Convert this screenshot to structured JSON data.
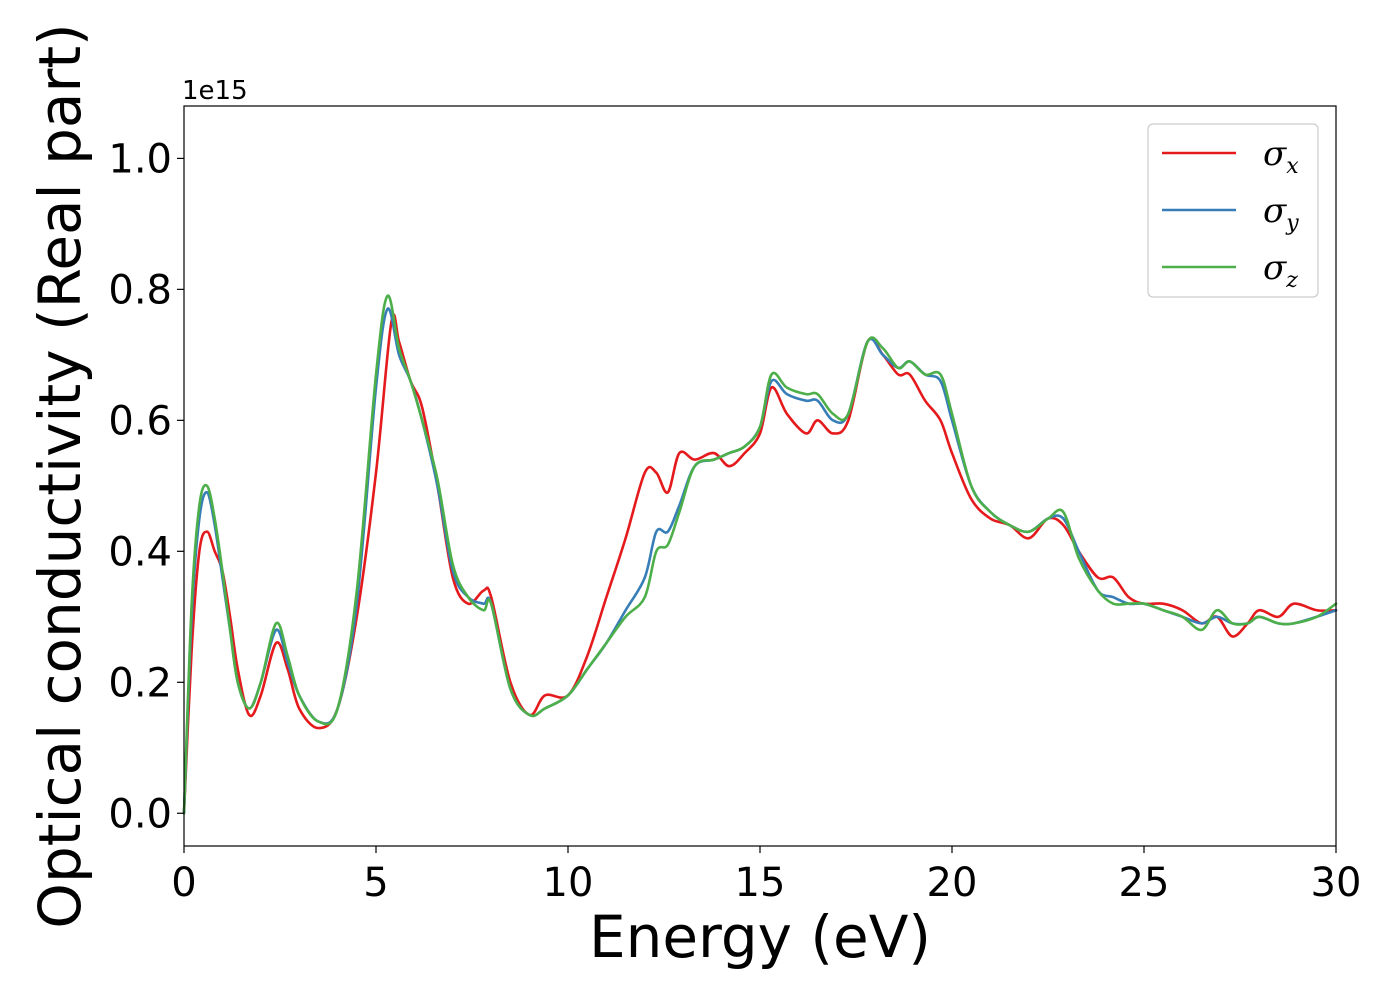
{
  "chart_data": {
    "type": "line",
    "xlabel": "Energy (eV)",
    "ylabel": "Optical conductivity (Real part)",
    "y_offset_label": "1e15",
    "xlim": [
      0,
      30
    ],
    "ylim": [
      -0.05,
      1.08
    ],
    "xticks": [
      0,
      5,
      10,
      15,
      20,
      25,
      30
    ],
    "xtick_labels": [
      "0",
      "5",
      "10",
      "15",
      "20",
      "25",
      "30"
    ],
    "yticks": [
      0.0,
      0.2,
      0.4,
      0.6,
      0.8,
      1.0
    ],
    "ytick_labels": [
      "0.0",
      "0.2",
      "0.4",
      "0.6",
      "0.8",
      "1.0"
    ],
    "grid": false,
    "legend_position": "top-right",
    "series": [
      {
        "name": "σx",
        "symbol": "σ",
        "subscript": "x",
        "color": "#e41a1c",
        "x": [
          0,
          0.2,
          0.4,
          0.6,
          0.8,
          1.0,
          1.2,
          1.4,
          1.7,
          2.0,
          2.4,
          2.7,
          3.0,
          3.5,
          4.0,
          4.5,
          5.0,
          5.4,
          5.6,
          5.9,
          6.2,
          6.6,
          7.0,
          7.4,
          7.8,
          8.0,
          8.5,
          9.0,
          9.4,
          10.0,
          10.5,
          11.0,
          11.5,
          12.0,
          12.3,
          12.6,
          12.9,
          13.3,
          13.8,
          14.2,
          14.6,
          15.0,
          15.3,
          15.7,
          16.2,
          16.5,
          16.9,
          17.3,
          17.8,
          18.2,
          18.6,
          18.9,
          19.3,
          19.7,
          20.0,
          20.5,
          21.0,
          21.5,
          22.0,
          22.5,
          22.9,
          23.3,
          23.8,
          24.2,
          24.6,
          25.0,
          25.5,
          26.0,
          26.5,
          26.9,
          27.3,
          27.7,
          28.0,
          28.5,
          28.9,
          29.5,
          30.0
        ],
        "y": [
          0.0,
          0.25,
          0.4,
          0.43,
          0.4,
          0.37,
          0.3,
          0.22,
          0.15,
          0.18,
          0.26,
          0.22,
          0.16,
          0.13,
          0.16,
          0.3,
          0.52,
          0.75,
          0.72,
          0.66,
          0.62,
          0.5,
          0.36,
          0.32,
          0.34,
          0.33,
          0.2,
          0.15,
          0.18,
          0.18,
          0.24,
          0.33,
          0.42,
          0.52,
          0.52,
          0.49,
          0.55,
          0.54,
          0.55,
          0.53,
          0.55,
          0.58,
          0.65,
          0.61,
          0.58,
          0.6,
          0.58,
          0.6,
          0.72,
          0.7,
          0.67,
          0.67,
          0.63,
          0.6,
          0.55,
          0.48,
          0.45,
          0.44,
          0.42,
          0.45,
          0.44,
          0.4,
          0.36,
          0.36,
          0.33,
          0.32,
          0.32,
          0.31,
          0.29,
          0.3,
          0.27,
          0.29,
          0.31,
          0.3,
          0.32,
          0.31,
          0.31
        ]
      },
      {
        "name": "σy",
        "symbol": "σ",
        "subscript": "y",
        "color": "#377eb8",
        "x": [
          0,
          0.2,
          0.4,
          0.6,
          0.8,
          1.0,
          1.2,
          1.4,
          1.7,
          2.0,
          2.4,
          2.7,
          3.0,
          3.5,
          4.0,
          4.5,
          5.0,
          5.3,
          5.6,
          5.9,
          6.2,
          6.6,
          7.0,
          7.4,
          7.8,
          8.0,
          8.5,
          9.0,
          9.4,
          10.0,
          10.5,
          11.0,
          11.5,
          12.0,
          12.3,
          12.6,
          12.9,
          13.3,
          13.8,
          14.2,
          14.6,
          15.0,
          15.3,
          15.7,
          16.2,
          16.5,
          16.9,
          17.3,
          17.8,
          18.2,
          18.6,
          18.9,
          19.3,
          19.7,
          20.0,
          20.5,
          21.0,
          21.5,
          22.0,
          22.5,
          22.9,
          23.3,
          23.8,
          24.2,
          24.6,
          25.0,
          25.5,
          26.0,
          26.5,
          26.9,
          27.3,
          27.7,
          28.0,
          28.5,
          28.9,
          29.5,
          30.0
        ],
        "y": [
          0.0,
          0.3,
          0.45,
          0.49,
          0.44,
          0.36,
          0.28,
          0.2,
          0.16,
          0.2,
          0.28,
          0.23,
          0.18,
          0.14,
          0.16,
          0.32,
          0.65,
          0.77,
          0.7,
          0.66,
          0.6,
          0.5,
          0.37,
          0.33,
          0.32,
          0.32,
          0.19,
          0.15,
          0.16,
          0.18,
          0.22,
          0.26,
          0.31,
          0.36,
          0.43,
          0.43,
          0.47,
          0.53,
          0.54,
          0.55,
          0.56,
          0.59,
          0.66,
          0.64,
          0.63,
          0.63,
          0.6,
          0.61,
          0.72,
          0.7,
          0.68,
          0.69,
          0.67,
          0.66,
          0.6,
          0.5,
          0.46,
          0.44,
          0.43,
          0.45,
          0.45,
          0.4,
          0.34,
          0.33,
          0.32,
          0.32,
          0.31,
          0.3,
          0.29,
          0.3,
          0.29,
          0.29,
          0.3,
          0.29,
          0.29,
          0.3,
          0.31
        ]
      },
      {
        "name": "σz",
        "symbol": "σ",
        "subscript": "z",
        "color": "#4daf4a",
        "x": [
          0,
          0.2,
          0.4,
          0.6,
          0.8,
          1.0,
          1.2,
          1.4,
          1.7,
          2.0,
          2.4,
          2.7,
          3.0,
          3.5,
          4.0,
          4.5,
          5.0,
          5.3,
          5.6,
          5.9,
          6.2,
          6.6,
          7.0,
          7.4,
          7.8,
          8.0,
          8.5,
          9.0,
          9.4,
          10.0,
          10.5,
          11.0,
          11.5,
          12.0,
          12.3,
          12.6,
          12.9,
          13.3,
          13.8,
          14.2,
          14.6,
          15.0,
          15.3,
          15.7,
          16.2,
          16.5,
          16.9,
          17.3,
          17.8,
          18.2,
          18.6,
          18.9,
          19.3,
          19.7,
          20.0,
          20.5,
          21.0,
          21.5,
          22.0,
          22.5,
          22.9,
          23.3,
          23.8,
          24.2,
          24.6,
          25.0,
          25.5,
          26.0,
          26.5,
          26.9,
          27.3,
          27.7,
          28.0,
          28.5,
          28.9,
          29.5,
          30.0
        ],
        "y": [
          0.0,
          0.32,
          0.47,
          0.5,
          0.45,
          0.37,
          0.28,
          0.2,
          0.16,
          0.2,
          0.29,
          0.24,
          0.18,
          0.14,
          0.16,
          0.34,
          0.67,
          0.79,
          0.71,
          0.66,
          0.6,
          0.51,
          0.38,
          0.33,
          0.31,
          0.32,
          0.19,
          0.15,
          0.16,
          0.18,
          0.22,
          0.26,
          0.3,
          0.33,
          0.4,
          0.41,
          0.46,
          0.53,
          0.54,
          0.55,
          0.56,
          0.59,
          0.67,
          0.65,
          0.64,
          0.64,
          0.61,
          0.61,
          0.72,
          0.71,
          0.68,
          0.69,
          0.67,
          0.67,
          0.61,
          0.5,
          0.46,
          0.44,
          0.43,
          0.45,
          0.46,
          0.39,
          0.34,
          0.32,
          0.32,
          0.32,
          0.31,
          0.3,
          0.28,
          0.31,
          0.29,
          0.29,
          0.3,
          0.29,
          0.29,
          0.3,
          0.32
        ]
      }
    ]
  }
}
